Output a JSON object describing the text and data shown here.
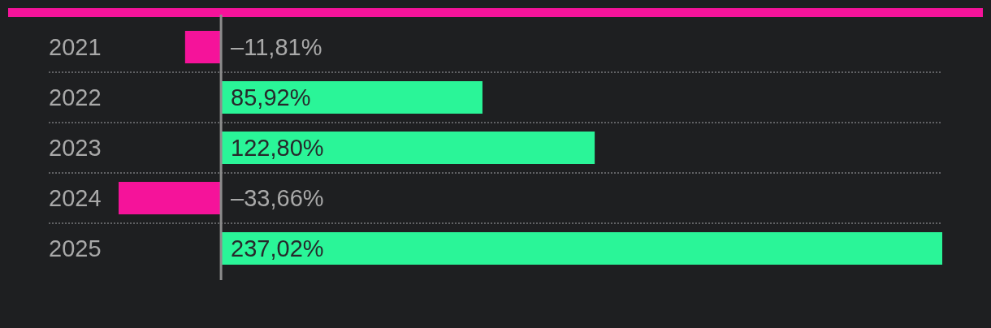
{
  "chart_data": {
    "type": "bar",
    "orientation": "horizontal",
    "categories": [
      "2021",
      "2022",
      "2023",
      "2024",
      "2025"
    ],
    "values": [
      -11.81,
      85.92,
      122.8,
      -33.66,
      237.02
    ],
    "colors": [
      "#f5139a",
      "#2af598",
      "#2af598",
      "#f5139a",
      "#2af598"
    ],
    "value_labels": [
      "–11,81%",
      "85,92%",
      "122,80%",
      "–33,66%",
      "237,02%"
    ],
    "grid": "y",
    "ref_lines": [
      {
        "axis": "x",
        "value": 0,
        "color": "#8c8c8c"
      }
    ]
  }
}
